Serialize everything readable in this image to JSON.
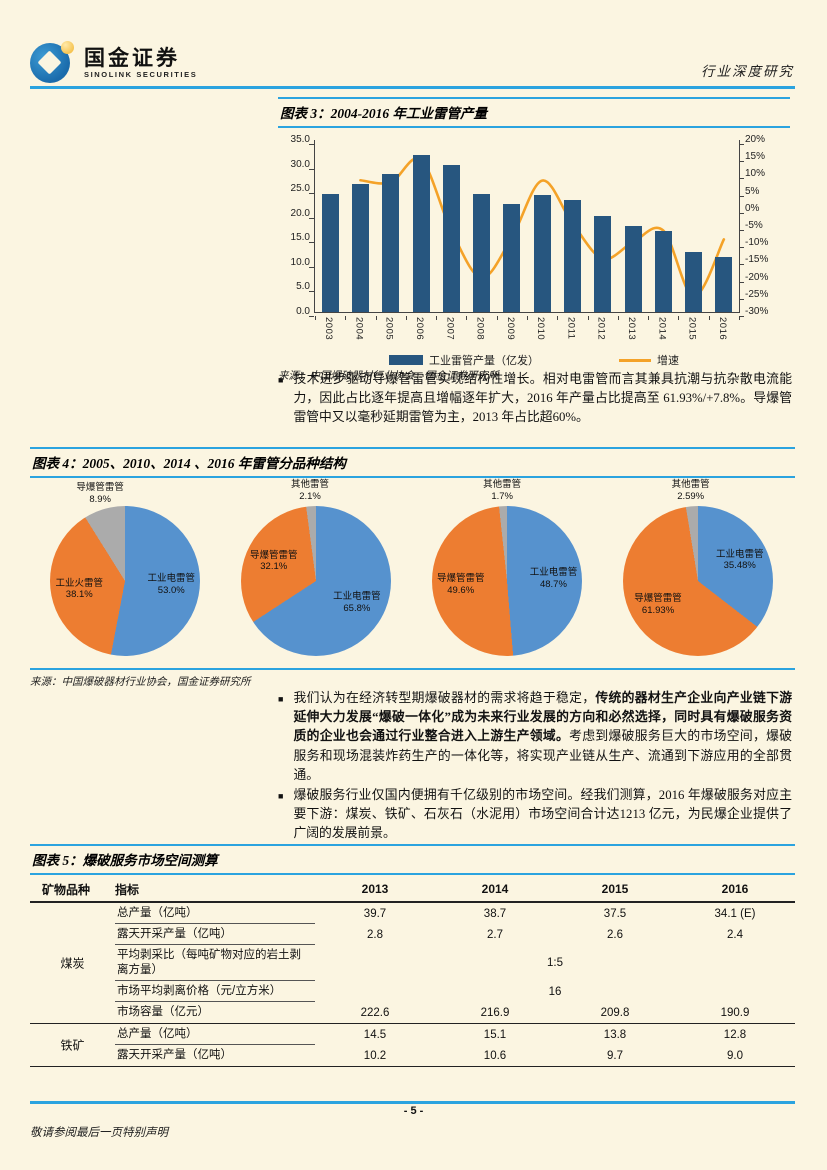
{
  "brand": {
    "name_cn": "国金证券",
    "name_en": "SINOLINK SECURITIES"
  },
  "header": {
    "right_label": "行业深度研究"
  },
  "footer": {
    "page_number": "- 5 -",
    "disclaimer": "敬请参阅最后一页特别声明"
  },
  "colors": {
    "accent_rule": "#2BA3DF",
    "bar": "#27567F",
    "growth_line": "#F4A228",
    "pie_blue": "#5692CE",
    "pie_orange": "#ED7D31",
    "pie_gray": "#ABABAB"
  },
  "bullets": {
    "b1": "技术进步驱动导爆管雷管实现结构性增长。相对电雷管而言其兼具抗潮与抗杂散电流能力，因此占比逐年提高且增幅逐年扩大，2016 年产量占比提高至 61.93%/+7.8%。导爆管雷管中又以毫秒延期雷管为主，2013 年占比超60%。",
    "b2_pre": "我们认为在经济转型期爆破器材的需求将趋于稳定，",
    "b2_bold": "传统的器材生产企业向产业链下游延伸大力发展“爆破一体化”成为未来行业发展的方向和必然选择，同时具有爆破服务资质的企业也会通过行业整合进入上游生产领域。",
    "b2_post": "考虑到爆破服务巨大的市场空间，爆破服务和现场混装炸药生产的一体化等，将实现产业链从生产、流通到下游应用的全部贯通。",
    "b3": "爆破服务行业仅国内便拥有千亿级别的市场空间。经我们测算，2016 年爆破服务对应主要下游：煤炭、铁矿、石灰石（水泥用）市场空间合计达1213 亿元，为民爆企业提供了广阔的发展前景。"
  },
  "chart_data": [
    {
      "type": "bar",
      "title": "图表 3：2004-2016 年工业雷管产量",
      "source": "来源：中国爆破器材行业协会，国金证券研究所",
      "categories": [
        "2003",
        "2004",
        "2005",
        "2006",
        "2007",
        "2008",
        "2009",
        "2010",
        "2011",
        "2012",
        "2013",
        "2014",
        "2015",
        "2016"
      ],
      "series": [
        {
          "name": "工业雷管产量（亿发）",
          "type": "bar",
          "axis": "left",
          "values": [
            24.0,
            26.0,
            28.0,
            32.0,
            30.0,
            24.0,
            22.0,
            23.8,
            22.8,
            19.5,
            17.6,
            16.5,
            12.3,
            11.2
          ]
        },
        {
          "name": "增速",
          "type": "line",
          "axis": "right",
          "values": [
            null,
            8.3,
            7.7,
            14.3,
            -6.3,
            -20.0,
            -8.3,
            8.2,
            -4.2,
            -14.5,
            -9.7,
            -6.3,
            -25.5,
            -8.9
          ]
        }
      ],
      "left_axis": {
        "min": 0,
        "max": 35,
        "step": 5,
        "ticks": [
          "35.0",
          "30.0",
          "25.0",
          "20.0",
          "15.0",
          "10.0",
          "5.0",
          "0.0"
        ]
      },
      "right_axis": {
        "min": -30,
        "max": 20,
        "step": 5,
        "ticks": [
          "20%",
          "15%",
          "10%",
          "5%",
          "0%",
          "-5%",
          "-10%",
          "-15%",
          "-20%",
          "-25%",
          "-30%"
        ]
      },
      "grid": false,
      "legend_position": "bottom"
    },
    {
      "type": "pie",
      "title": "图表 4：2005、2010、2014 、2016 年雷管分品种结构",
      "source": "来源：中国爆破器材行业协会，国金证券研究所",
      "pies": [
        {
          "year": "2005",
          "slices": [
            {
              "label": "工业电雷管",
              "value": 53.0,
              "pct_label": "53.0%",
              "color_key": "pie_blue"
            },
            {
              "label": "工业火雷管",
              "value": 38.1,
              "pct_label": "38.1%",
              "color_key": "pie_orange"
            },
            {
              "label": "导爆管雷管",
              "value": 8.9,
              "pct_label": "8.9%",
              "color_key": "pie_gray"
            }
          ]
        },
        {
          "year": "2010",
          "slices": [
            {
              "label": "工业电雷管",
              "value": 65.8,
              "pct_label": "65.8%",
              "color_key": "pie_blue"
            },
            {
              "label": "导爆管雷管",
              "value": 32.1,
              "pct_label": "32.1%",
              "color_key": "pie_orange"
            },
            {
              "label": "其他雷管",
              "value": 2.1,
              "pct_label": "2.1%",
              "color_key": "pie_gray"
            }
          ]
        },
        {
          "year": "2014",
          "slices": [
            {
              "label": "工业电雷管",
              "value": 48.7,
              "pct_label": "48.7%",
              "color_key": "pie_blue"
            },
            {
              "label": "导爆管雷管",
              "value": 49.6,
              "pct_label": "49.6%",
              "color_key": "pie_orange"
            },
            {
              "label": "其他雷管",
              "value": 1.7,
              "pct_label": "1.7%",
              "color_key": "pie_gray"
            }
          ]
        },
        {
          "year": "2016",
          "slices": [
            {
              "label": "工业电雷管",
              "value": 35.48,
              "pct_label": "35.48%",
              "color_key": "pie_blue"
            },
            {
              "label": "导爆管雷管",
              "value": 61.93,
              "pct_label": "61.93%",
              "color_key": "pie_orange"
            },
            {
              "label": "其他雷管",
              "value": 2.59,
              "pct_label": "2.59%",
              "color_key": "pie_gray"
            }
          ]
        }
      ]
    }
  ],
  "table5": {
    "title": "图表 5：爆破服务市场空间测算",
    "headers": [
      "矿物品种",
      "指标",
      "2013",
      "2014",
      "2015",
      "2016"
    ],
    "groups": [
      {
        "name": "煤炭",
        "rows": [
          {
            "indicator": "总产量（亿吨）",
            "values": [
              "39.7",
              "38.7",
              "37.5",
              "34.1 (E)"
            ]
          },
          {
            "indicator": "露天开采产量（亿吨）",
            "values": [
              "2.8",
              "2.7",
              "2.6",
              "2.4"
            ]
          },
          {
            "indicator": "平均剥采比（每吨矿物对应的岩土剥离方量）",
            "span_value": "1:5"
          },
          {
            "indicator": "市场平均剥离价格（元/立方米）",
            "span_value": "16"
          },
          {
            "indicator": "市场容量（亿元）",
            "values": [
              "222.6",
              "216.9",
              "209.8",
              "190.9"
            ]
          }
        ]
      },
      {
        "name": "铁矿",
        "rows": [
          {
            "indicator": "总产量（亿吨）",
            "values": [
              "14.5",
              "15.1",
              "13.8",
              "12.8"
            ]
          },
          {
            "indicator": "露天开采产量（亿吨）",
            "values": [
              "10.2",
              "10.6",
              "9.7",
              "9.0"
            ]
          }
        ]
      }
    ]
  }
}
